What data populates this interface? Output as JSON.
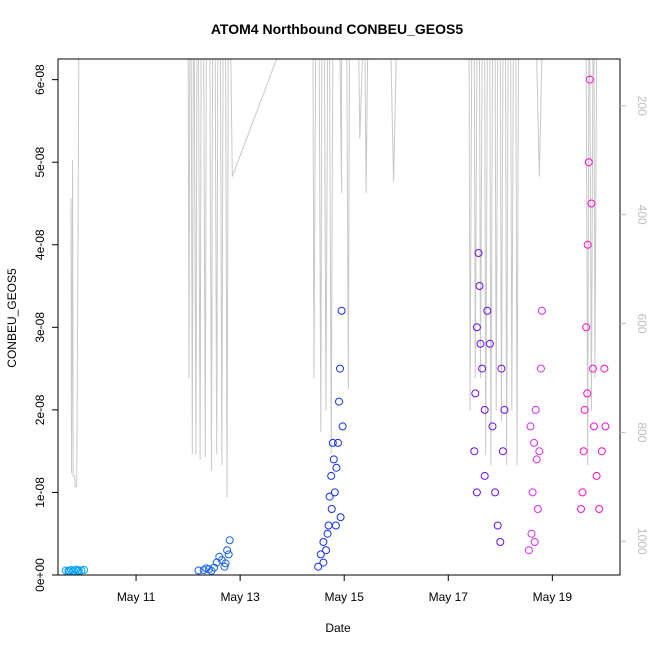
{
  "chart_data": {
    "type": "scatter",
    "title": "ATOM4 Northbound CONBEU_GEOS5",
    "xlabel": "Date",
    "ylabel": "CONBEU_GEOS5",
    "x_ticks": [
      {
        "value": 11,
        "label": "May 11"
      },
      {
        "value": 13,
        "label": "May 13"
      },
      {
        "value": 15,
        "label": "May 15"
      },
      {
        "value": 17,
        "label": "May 17"
      },
      {
        "value": 19,
        "label": "May 19"
      }
    ],
    "xlim": [
      9.5,
      20.3
    ],
    "ylim": [
      0,
      6.25e-08
    ],
    "y_ticks": [
      {
        "value": 0,
        "label": "0e+00"
      },
      {
        "value": 1e-08,
        "label": "1e-08"
      },
      {
        "value": 2e-08,
        "label": "2e-08"
      },
      {
        "value": 3e-08,
        "label": "3e-08"
      },
      {
        "value": 4e-08,
        "label": "4e-08"
      },
      {
        "value": 5e-08,
        "label": "5e-08"
      },
      {
        "value": 6e-08,
        "label": "6e-08"
      }
    ],
    "right_axis": {
      "label": "",
      "ylim": [
        1062,
        114
      ],
      "ticks": [
        {
          "value": 200,
          "label": "200"
        },
        {
          "value": 400,
          "label": "400"
        },
        {
          "value": 600,
          "label": "600"
        },
        {
          "value": 800,
          "label": "800"
        },
        {
          "value": 1000,
          "label": "1000"
        }
      ],
      "color": "#bdbdbd"
    },
    "pressure_trace": {
      "color": "#c8c8c8",
      "points": [
        [
          9.75,
          400
        ],
        [
          9.75,
          370
        ],
        [
          9.76,
          875
        ],
        [
          9.78,
          300
        ],
        [
          9.79,
          880
        ],
        [
          9.8,
          880
        ],
        [
          9.81,
          880
        ],
        [
          9.82,
          880
        ],
        [
          9.83,
          900
        ],
        [
          9.85,
          900
        ],
        [
          9.86,
          900
        ],
        [
          9.88,
          525
        ],
        [
          9.9,
          114
        ],
        [
          12.0,
          114
        ],
        [
          12.0,
          114
        ],
        [
          12.02,
          700
        ],
        [
          12.03,
          114
        ],
        [
          12.06,
          114
        ],
        [
          12.08,
          840
        ],
        [
          12.1,
          114
        ],
        [
          12.12,
          114
        ],
        [
          12.15,
          840
        ],
        [
          12.17,
          114
        ],
        [
          12.2,
          114
        ],
        [
          12.23,
          850
        ],
        [
          12.25,
          114
        ],
        [
          12.3,
          114
        ],
        [
          12.33,
          845
        ],
        [
          12.35,
          114
        ],
        [
          12.42,
          114
        ],
        [
          12.45,
          870
        ],
        [
          12.47,
          114
        ],
        [
          12.52,
          114
        ],
        [
          12.55,
          840
        ],
        [
          12.57,
          114
        ],
        [
          12.62,
          114
        ],
        [
          12.65,
          860
        ],
        [
          12.67,
          114
        ],
        [
          12.72,
          114
        ],
        [
          12.75,
          920
        ],
        [
          12.77,
          114
        ],
        [
          12.82,
          114
        ],
        [
          12.85,
          330
        ],
        [
          13.7,
          114
        ],
        [
          14.3,
          114
        ],
        [
          14.4,
          114
        ],
        [
          14.42,
          700
        ],
        [
          14.45,
          114
        ],
        [
          14.52,
          114
        ],
        [
          14.55,
          800
        ],
        [
          14.57,
          114
        ],
        [
          14.62,
          114
        ],
        [
          14.65,
          760
        ],
        [
          14.68,
          114
        ],
        [
          14.72,
          114
        ],
        [
          14.75,
          840
        ],
        [
          14.78,
          114
        ],
        [
          14.85,
          114
        ],
        [
          14.92,
          114
        ],
        [
          14.95,
          360
        ],
        [
          14.95,
          114
        ],
        [
          15.05,
          114
        ],
        [
          15.08,
          720
        ],
        [
          15.1,
          114
        ],
        [
          15.2,
          114
        ],
        [
          15.25,
          114
        ],
        [
          15.26,
          114
        ],
        [
          15.28,
          114
        ],
        [
          15.3,
          260
        ],
        [
          15.35,
          114
        ],
        [
          15.4,
          114
        ],
        [
          15.42,
          360
        ],
        [
          15.45,
          114
        ],
        [
          15.6,
          114
        ],
        [
          15.65,
          114
        ],
        [
          15.7,
          114
        ],
        [
          15.72,
          114
        ],
        [
          15.75,
          114
        ],
        [
          15.8,
          114
        ],
        [
          15.9,
          114
        ],
        [
          15.95,
          340
        ],
        [
          16.0,
          114
        ],
        [
          16.2,
          114
        ],
        [
          16.5,
          114
        ],
        [
          17.3,
          114
        ],
        [
          17.4,
          114
        ],
        [
          17.42,
          760
        ],
        [
          17.45,
          114
        ],
        [
          17.5,
          114
        ],
        [
          17.52,
          700
        ],
        [
          17.55,
          114
        ],
        [
          17.6,
          114
        ],
        [
          17.62,
          700
        ],
        [
          17.65,
          114
        ],
        [
          17.7,
          114
        ],
        [
          17.72,
          840
        ],
        [
          17.75,
          114
        ],
        [
          17.8,
          114
        ],
        [
          17.82,
          860
        ],
        [
          17.85,
          114
        ],
        [
          17.9,
          114
        ],
        [
          17.92,
          760
        ],
        [
          17.95,
          114
        ],
        [
          18.0,
          114
        ],
        [
          18.02,
          780
        ],
        [
          18.05,
          114
        ],
        [
          18.1,
          114
        ],
        [
          18.12,
          860
        ],
        [
          18.15,
          114
        ],
        [
          18.2,
          114
        ],
        [
          18.22,
          760
        ],
        [
          18.25,
          114
        ],
        [
          18.3,
          114
        ],
        [
          18.32,
          860
        ],
        [
          18.35,
          114
        ],
        [
          18.4,
          114
        ],
        [
          18.5,
          114
        ],
        [
          18.6,
          114
        ],
        [
          18.7,
          114
        ],
        [
          18.75,
          330
        ],
        [
          18.8,
          114
        ],
        [
          19.0,
          114
        ],
        [
          19.1,
          114
        ],
        [
          19.2,
          114
        ],
        [
          19.3,
          114
        ],
        [
          19.4,
          114
        ],
        [
          19.45,
          114
        ],
        [
          19.48,
          114
        ],
        [
          19.5,
          114
        ],
        [
          19.52,
          114
        ],
        [
          19.6,
          114
        ],
        [
          19.65,
          114
        ],
        [
          19.68,
          860
        ],
        [
          19.7,
          114
        ],
        [
          19.72,
          114
        ],
        [
          19.75,
          760
        ],
        [
          19.78,
          114
        ],
        [
          19.8,
          114
        ],
        [
          19.82,
          700
        ],
        [
          19.85,
          114
        ],
        [
          19.9,
          114
        ],
        [
          19.95,
          114
        ],
        [
          20.0,
          114
        ]
      ]
    },
    "series": [
      {
        "color": "#00a0ff",
        "points": [
          [
            9.65,
            5.5e-10
          ],
          [
            9.7,
            5e-10
          ],
          [
            9.75,
            6e-10
          ],
          [
            9.8,
            5.2e-10
          ],
          [
            9.85,
            6.5e-10
          ],
          [
            9.9,
            5.8e-10
          ],
          [
            9.95,
            5.3e-10
          ],
          [
            10.0,
            6.2e-10
          ],
          [
            9.72,
            4.5e-10
          ],
          [
            9.88,
            4.8e-10
          ]
        ]
      },
      {
        "color": "#1a64e6",
        "points": [
          [
            12.2,
            5.5e-10
          ],
          [
            12.3,
            6e-10
          ],
          [
            12.4,
            7e-10
          ],
          [
            12.5,
            9e-10
          ],
          [
            12.55,
            1.5e-09
          ],
          [
            12.6,
            2.2e-09
          ],
          [
            12.65,
            1.8e-09
          ],
          [
            12.7,
            1e-09
          ],
          [
            12.75,
            3e-09
          ],
          [
            12.8,
            4.2e-09
          ],
          [
            12.78,
            2.5e-09
          ],
          [
            12.72,
            1.4e-09
          ],
          [
            12.35,
            8e-10
          ],
          [
            12.45,
            5e-10
          ]
        ]
      },
      {
        "color": "#1430ee",
        "points": [
          [
            14.5,
            1e-09
          ],
          [
            14.55,
            2.5e-09
          ],
          [
            14.6,
            4e-09
          ],
          [
            14.65,
            3e-09
          ],
          [
            14.7,
            6e-09
          ],
          [
            14.72,
            9.5e-09
          ],
          [
            14.75,
            1.2e-08
          ],
          [
            14.78,
            1.6e-08
          ],
          [
            14.8,
            1.4e-08
          ],
          [
            14.82,
            1e-08
          ],
          [
            14.85,
            1.3e-08
          ],
          [
            14.88,
            1.6e-08
          ],
          [
            14.9,
            2.1e-08
          ],
          [
            14.92,
            2.5e-08
          ],
          [
            14.95,
            3.2e-08
          ],
          [
            14.97,
            1.8e-08
          ],
          [
            14.93,
            7e-09
          ],
          [
            14.6,
            1.5e-09
          ],
          [
            14.68,
            5e-09
          ],
          [
            14.76,
            8e-09
          ],
          [
            14.84,
            6e-09
          ]
        ]
      },
      {
        "color": "#6b10f0",
        "points": [
          [
            17.5,
            1.5e-08
          ],
          [
            17.52,
            2.2e-08
          ],
          [
            17.55,
            3e-08
          ],
          [
            17.58,
            3.9e-08
          ],
          [
            17.6,
            3.5e-08
          ],
          [
            17.65,
            2.5e-08
          ],
          [
            17.7,
            2e-08
          ],
          [
            17.75,
            3.2e-08
          ],
          [
            17.8,
            2.8e-08
          ],
          [
            17.85,
            1.8e-08
          ],
          [
            17.9,
            1e-08
          ],
          [
            17.95,
            6e-09
          ],
          [
            18.0,
            4e-09
          ],
          [
            18.02,
            2.5e-08
          ],
          [
            18.05,
            1.5e-08
          ],
          [
            18.08,
            2e-08
          ],
          [
            17.55,
            1e-08
          ],
          [
            17.7,
            1.2e-08
          ],
          [
            17.62,
            2.8e-08
          ]
        ]
      },
      {
        "color": "#d42ef0",
        "points": [
          [
            18.55,
            3e-09
          ],
          [
            18.6,
            5e-09
          ],
          [
            18.62,
            1e-08
          ],
          [
            18.65,
            1.6e-08
          ],
          [
            18.68,
            2e-08
          ],
          [
            18.7,
            1.4e-08
          ],
          [
            18.72,
            8e-09
          ],
          [
            18.75,
            1.5e-08
          ],
          [
            18.78,
            2.5e-08
          ],
          [
            18.8,
            3.2e-08
          ],
          [
            18.58,
            1.8e-08
          ],
          [
            18.66,
            4e-09
          ]
        ]
      },
      {
        "color": "#ff10c8",
        "points": [
          [
            19.55,
            8e-09
          ],
          [
            19.6,
            1.5e-08
          ],
          [
            19.62,
            2e-08
          ],
          [
            19.65,
            3e-08
          ],
          [
            19.68,
            4e-08
          ],
          [
            19.7,
            5e-08
          ],
          [
            19.72,
            6e-08
          ],
          [
            19.75,
            4.5e-08
          ],
          [
            19.78,
            2.5e-08
          ],
          [
            19.8,
            1.8e-08
          ],
          [
            19.85,
            1.2e-08
          ],
          [
            19.9,
            8e-09
          ],
          [
            19.95,
            1.5e-08
          ],
          [
            20.0,
            2.5e-08
          ],
          [
            20.02,
            1.8e-08
          ],
          [
            19.58,
            1e-08
          ],
          [
            19.67,
            2.2e-08
          ]
        ]
      }
    ]
  }
}
